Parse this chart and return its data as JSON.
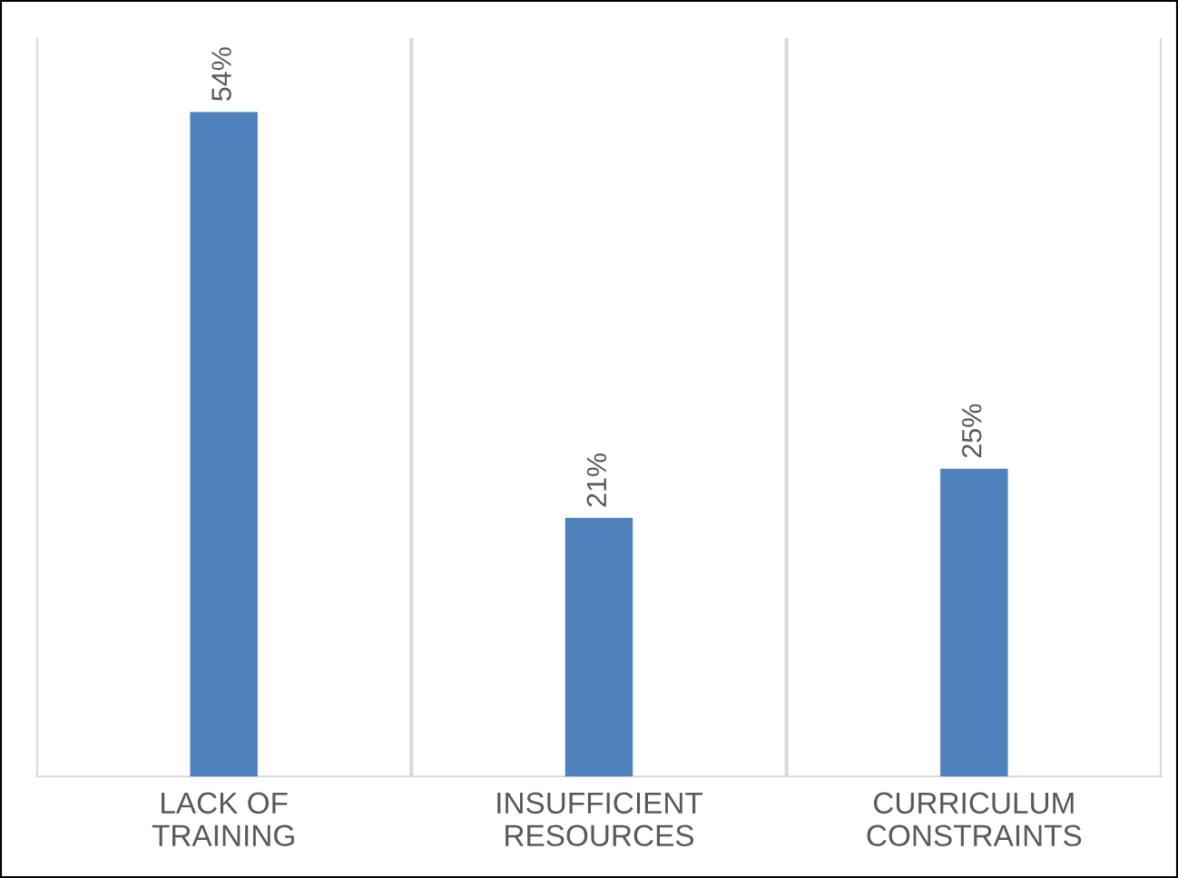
{
  "chart_data": {
    "type": "bar",
    "categories": [
      "LACK OF\nTRAINING",
      "INSUFFICIENT\nRESOURCES",
      "CURRICULUM\nCONSTRAINTS"
    ],
    "values": [
      54,
      21,
      25
    ],
    "color": "#4f81bd",
    "value_labels": [
      "54%",
      "21%",
      "25%"
    ],
    "ylim": [
      0,
      60
    ],
    "grid": "x",
    "tick_labels": "x",
    "legend": false
  }
}
